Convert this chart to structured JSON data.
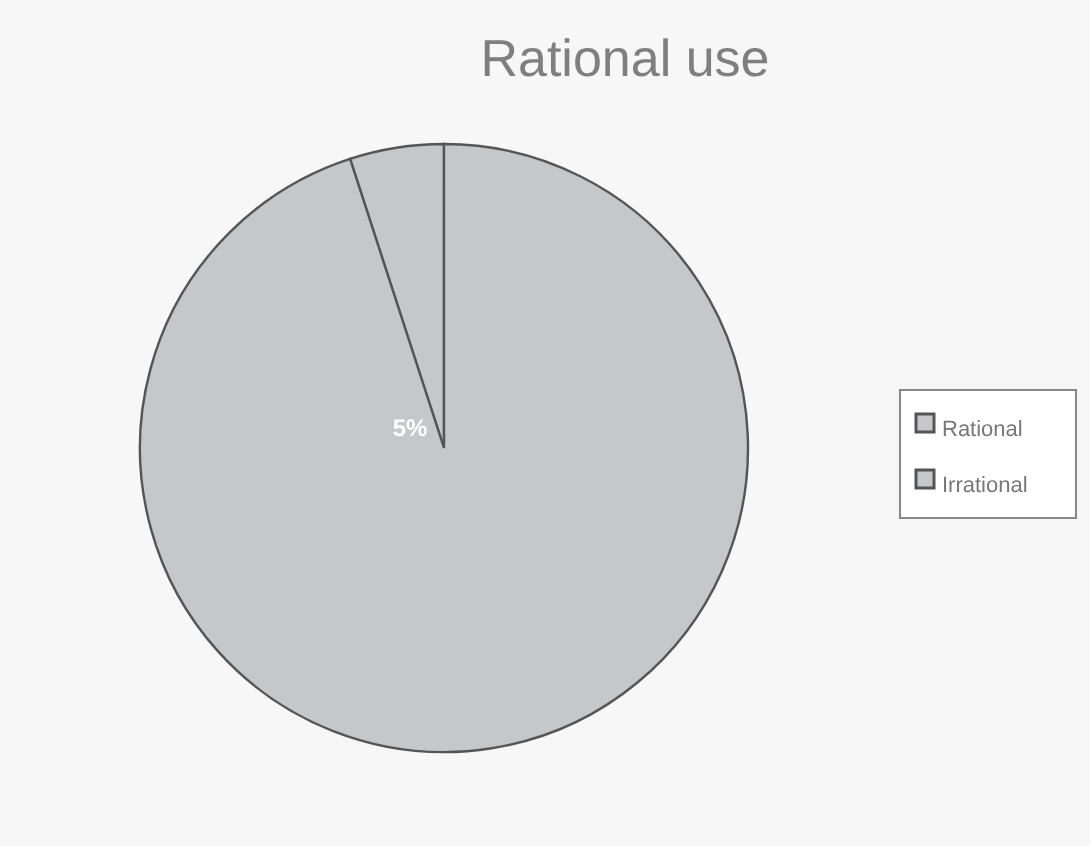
{
  "chart_data": {
    "type": "pie",
    "title": "Rational use",
    "categories": [
      "Rational",
      "Irrational"
    ],
    "values": [
      5,
      95
    ],
    "colors": [
      "#c5c8cb",
      "#c5c8cb"
    ],
    "value_labels": [
      "5%",
      null
    ],
    "legend": "right"
  }
}
